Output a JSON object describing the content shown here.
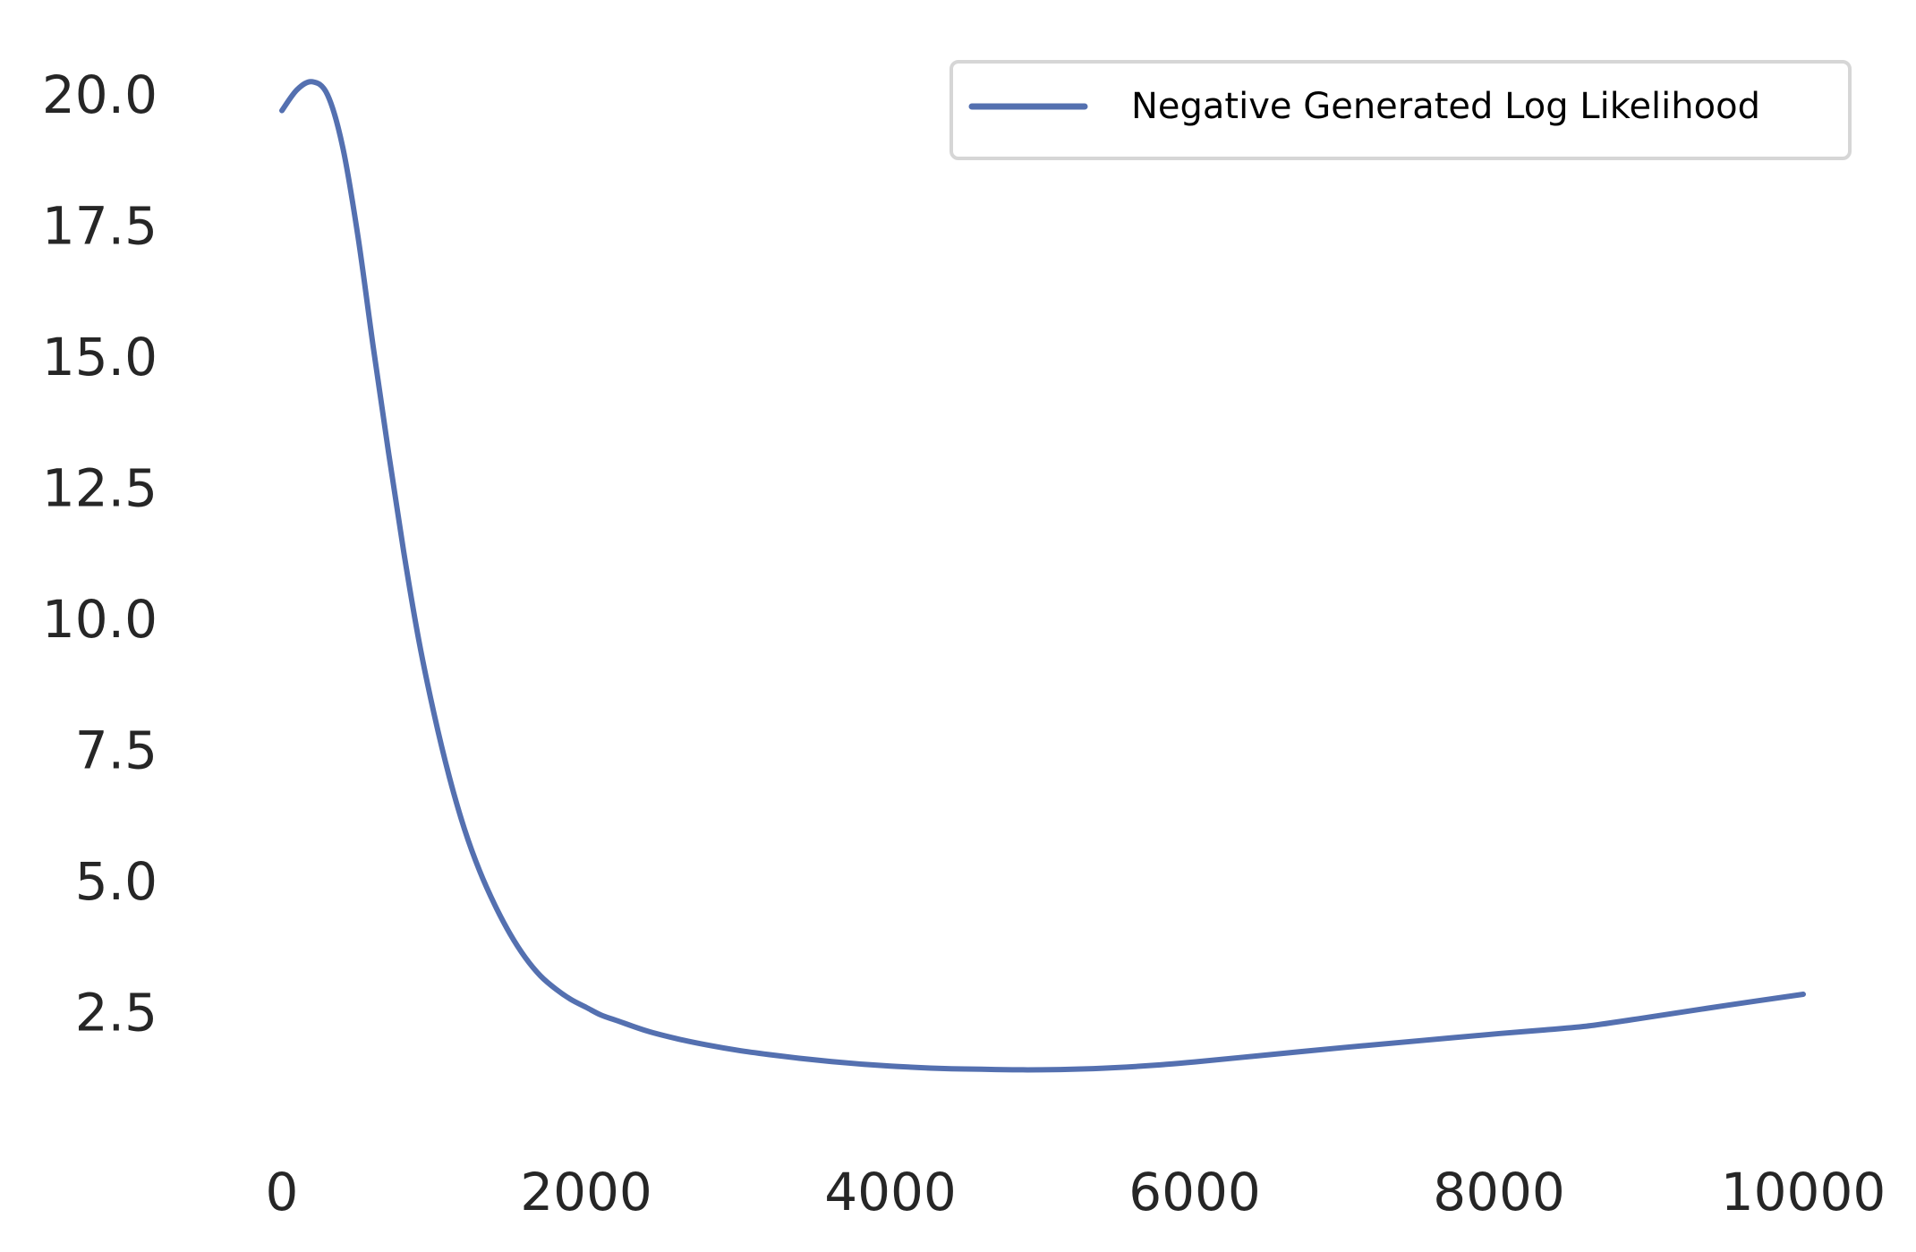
{
  "chart_data": {
    "type": "line",
    "title": "",
    "xlabel": "",
    "ylabel": "",
    "xlim": [
      -500,
      10500
    ],
    "ylim": [
      0.0,
      21.0
    ],
    "x_ticks": [
      0,
      2000,
      4000,
      6000,
      8000,
      10000
    ],
    "x_tick_labels": [
      "0",
      "2000",
      "4000",
      "6000",
      "8000",
      "10000"
    ],
    "y_ticks": [
      2.5,
      5.0,
      7.5,
      10.0,
      12.5,
      15.0,
      17.5,
      20.0
    ],
    "y_tick_labels": [
      "2.5",
      "5.0",
      "7.5",
      "10.0",
      "12.5",
      "15.0",
      "17.5",
      "20.0"
    ],
    "grid": false,
    "legend_position": "top-right",
    "colors": {
      "series": "#5470b0",
      "legend_border": "#d6d6d6",
      "tick_text": "#262626",
      "legend_text": "#000000"
    },
    "series": [
      {
        "name": "Negative Generated Log Likelihood",
        "x": [
          0,
          100,
          200,
          300,
          400,
          500,
          600,
          700,
          800,
          900,
          1000,
          1100,
          1200,
          1300,
          1400,
          1500,
          1600,
          1700,
          1800,
          1900,
          2000,
          2100,
          2200,
          2400,
          2600,
          2800,
          3000,
          3200,
          3400,
          3600,
          3800,
          4000,
          4200,
          4400,
          4600,
          4800,
          5000,
          5200,
          5400,
          5600,
          5800,
          6000,
          6500,
          7000,
          7500,
          8000,
          8300,
          8600,
          9000,
          9500,
          10000
        ],
        "y": [
          19.7,
          20.1,
          20.25,
          20.0,
          19.0,
          17.3,
          15.2,
          13.2,
          11.3,
          9.6,
          8.2,
          7.0,
          6.0,
          5.2,
          4.55,
          4.0,
          3.55,
          3.2,
          2.95,
          2.75,
          2.6,
          2.45,
          2.35,
          2.15,
          2.0,
          1.88,
          1.78,
          1.7,
          1.63,
          1.57,
          1.52,
          1.48,
          1.45,
          1.43,
          1.42,
          1.41,
          1.41,
          1.42,
          1.44,
          1.47,
          1.51,
          1.56,
          1.7,
          1.84,
          1.97,
          2.1,
          2.17,
          2.25,
          2.42,
          2.64,
          2.85
        ]
      }
    ]
  }
}
